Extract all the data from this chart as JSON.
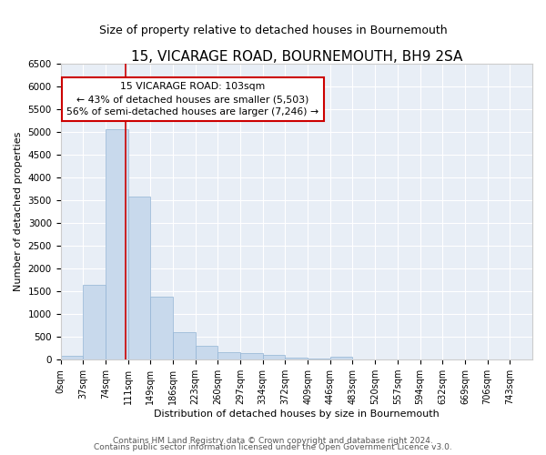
{
  "title": "15, VICARAGE ROAD, BOURNEMOUTH, BH9 2SA",
  "subtitle": "Size of property relative to detached houses in Bournemouth",
  "xlabel": "Distribution of detached houses by size in Bournemouth",
  "ylabel": "Number of detached properties",
  "bar_color": "#c8d9ec",
  "bar_edge_color": "#92b4d4",
  "bg_color": "#e8eef6",
  "grid_color": "#ffffff",
  "vline_color": "#cc0000",
  "annotation_text": "15 VICARAGE ROAD: 103sqm\n← 43% of detached houses are smaller (5,503)\n56% of semi-detached houses are larger (7,246) →",
  "bin_labels": [
    "0sqm",
    "37sqm",
    "74sqm",
    "111sqm",
    "149sqm",
    "186sqm",
    "223sqm",
    "260sqm",
    "297sqm",
    "334sqm",
    "372sqm",
    "409sqm",
    "446sqm",
    "483sqm",
    "520sqm",
    "557sqm",
    "594sqm",
    "632sqm",
    "669sqm",
    "706sqm",
    "743sqm"
  ],
  "bar_heights": [
    75,
    1640,
    5060,
    3580,
    1390,
    610,
    300,
    155,
    140,
    95,
    45,
    25,
    65,
    0,
    0,
    0,
    0,
    0,
    0,
    0,
    0
  ],
  "ylim": [
    0,
    6500
  ],
  "yticks": [
    0,
    500,
    1000,
    1500,
    2000,
    2500,
    3000,
    3500,
    4000,
    4500,
    5000,
    5500,
    6000,
    6500
  ],
  "vline_x_data": 2.89,
  "footer_line1": "Contains HM Land Registry data © Crown copyright and database right 2024.",
  "footer_line2": "Contains public sector information licensed under the Open Government Licence v3.0.",
  "title_fontsize": 11,
  "subtitle_fontsize": 9,
  "tick_fontsize": 7,
  "label_fontsize": 8,
  "footer_fontsize": 6.5
}
